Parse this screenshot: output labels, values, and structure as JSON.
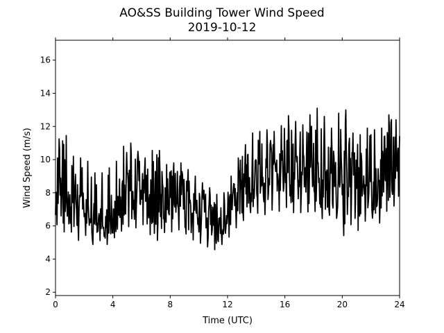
{
  "chart_data": {
    "type": "line",
    "title": "AO&SS Building Tower Wind Speed",
    "subtitle": "2019-10-12",
    "xlabel": "Time (UTC)",
    "ylabel": "Wind Speed (m/s)",
    "xlim": [
      0,
      24
    ],
    "ylim": [
      1.8,
      17.2
    ],
    "xticks": [
      0,
      4,
      8,
      12,
      16,
      20,
      24
    ],
    "yticks": [
      2,
      4,
      6,
      8,
      10,
      12,
      14,
      16
    ],
    "grid": false,
    "series": [
      {
        "color": "#000000",
        "x": [
          0.0,
          0.5,
          1.0,
          1.5,
          2.0,
          2.5,
          3.0,
          3.5,
          4.0,
          4.5,
          5.0,
          5.5,
          6.0,
          6.5,
          7.0,
          7.5,
          8.0,
          8.5,
          9.0,
          9.5,
          10.0,
          10.5,
          11.0,
          11.5,
          12.0,
          12.5,
          13.0,
          13.5,
          14.0,
          14.5,
          15.0,
          15.5,
          16.0,
          16.5,
          17.0,
          17.5,
          18.0,
          18.5,
          19.0,
          19.5,
          20.0,
          20.5,
          21.0,
          21.5,
          22.0,
          22.5,
          23.0,
          23.5,
          24.0
        ],
        "values": [
          7.8,
          7.6,
          8.2,
          7.0,
          7.4,
          6.6,
          6.8,
          6.6,
          7.0,
          7.4,
          7.8,
          7.6,
          8.2,
          7.6,
          7.2,
          7.4,
          7.4,
          7.8,
          7.6,
          7.2,
          6.8,
          6.4,
          6.2,
          5.8,
          6.6,
          7.4,
          7.8,
          8.6,
          8.8,
          8.8,
          9.0,
          9.0,
          9.4,
          9.2,
          9.0,
          9.2,
          9.6,
          8.8,
          8.8,
          9.0,
          9.2,
          8.6,
          8.2,
          8.6,
          8.8,
          8.6,
          9.4,
          9.8,
          9.6
        ],
        "envelope_low": [
          6.2,
          5.6,
          5.8,
          5.0,
          5.6,
          4.8,
          5.2,
          4.8,
          5.2,
          5.6,
          6.0,
          5.8,
          6.2,
          5.6,
          5.0,
          5.6,
          5.6,
          5.8,
          5.6,
          5.2,
          5.0,
          4.8,
          4.5,
          4.8,
          5.2,
          5.8,
          6.2,
          6.8,
          6.8,
          6.6,
          7.0,
          6.8,
          7.2,
          6.8,
          6.8,
          6.8,
          7.0,
          6.4,
          6.6,
          6.8,
          5.2,
          6.2,
          5.6,
          6.2,
          6.6,
          6.0,
          6.8,
          7.2,
          7.2
        ],
        "envelope_high": [
          10.2,
          12.3,
          10.6,
          9.8,
          10.4,
          9.4,
          9.0,
          9.4,
          9.6,
          10.2,
          11.4,
          10.6,
          10.4,
          9.8,
          11.3,
          9.8,
          9.6,
          10.0,
          9.6,
          9.2,
          8.8,
          8.4,
          8.2,
          7.6,
          8.4,
          9.6,
          10.6,
          11.2,
          12.0,
          11.4,
          12.2,
          11.2,
          12.9,
          12.4,
          12.2,
          12.0,
          13.4,
          12.8,
          12.4,
          11.4,
          14.2,
          11.8,
          11.4,
          11.6,
          12.2,
          11.4,
          12.4,
          13.0,
          11.8
        ]
      }
    ]
  }
}
